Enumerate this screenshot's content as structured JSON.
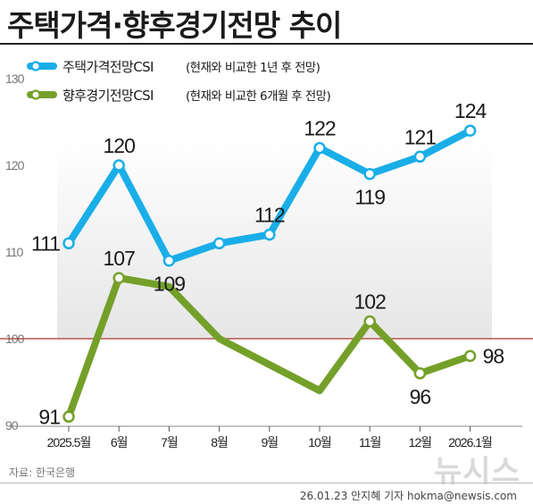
{
  "title": "주택가격·향후경기전망 추이",
  "source": "자료: 한국은행",
  "credit": "26.01.23 안지혜 기자 hokma@newsis.com",
  "logo": "뉴시스",
  "colors": {
    "housing": "#1aaee8",
    "economy": "#74a02a",
    "reference_line": "#b03030",
    "band": "#f0f0f0"
  },
  "chart_data": {
    "type": "line",
    "categories": [
      "2025.5월",
      "6월",
      "7월",
      "8월",
      "9월",
      "10월",
      "11월",
      "12월",
      "2026.1월"
    ],
    "ylim": [
      90,
      130
    ],
    "yticks": [
      "90",
      "100",
      "110",
      "120",
      "130"
    ],
    "reference_line": 100,
    "grid": false,
    "legend_position": "top-left",
    "series": [
      {
        "name": "주택가격전망CSI",
        "legend_note": "(현재와 비교한 1년 후 전망)",
        "values": [
          111,
          120,
          109,
          111,
          112,
          122,
          119,
          121,
          124
        ],
        "labels": [
          "111",
          "120",
          "109",
          "",
          "112",
          "122",
          "119",
          "121",
          "124"
        ],
        "color": "#1aaee8"
      },
      {
        "name": "향후경기전망CSI",
        "legend_note": "(현재와 비교한 6개월 후 전망)",
        "values": [
          91,
          107,
          106,
          100,
          97,
          94,
          102,
          96,
          98
        ],
        "labels": [
          "91",
          "107",
          "",
          "",
          "",
          "",
          "102",
          "96",
          "98"
        ],
        "color": "#74a02a"
      }
    ]
  }
}
